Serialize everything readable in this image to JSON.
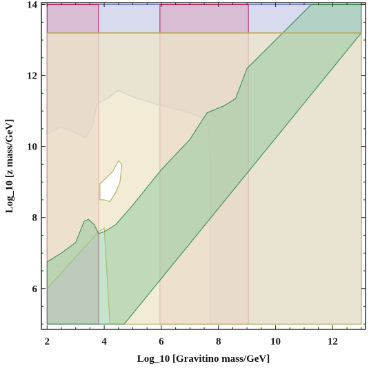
{
  "chart_data": {
    "type": "area",
    "title": "",
    "xlabel": "Log_10 [Gravitino mass/GeV]",
    "ylabel": "Log_10 [z mass/GeV]",
    "xlim": [
      1.8,
      13.15
    ],
    "ylim": [
      4.85,
      14.05
    ],
    "x_ticks": [
      2,
      4,
      6,
      8,
      10,
      12
    ],
    "y_ticks": [
      6,
      8,
      10,
      12,
      14
    ],
    "grid": false,
    "regions": [
      {
        "id": "blue-right",
        "fill": "#b8bce0",
        "stroke": "#7d86c4",
        "opacity": 0.55,
        "points": [
          [
            7.7,
            5.0
          ],
          [
            13.0,
            5.0
          ],
          [
            13.0,
            14.0
          ],
          [
            2.0,
            14.0
          ],
          [
            2.0,
            10.35
          ],
          [
            2.5,
            10.55
          ],
          [
            3.0,
            10.38
          ],
          [
            3.35,
            10.25
          ],
          [
            3.6,
            10.6
          ],
          [
            3.75,
            11.2
          ],
          [
            4.1,
            11.35
          ],
          [
            4.5,
            11.58
          ],
          [
            5.0,
            11.4
          ],
          [
            6.0,
            11.15
          ],
          [
            7.0,
            10.95
          ],
          [
            7.6,
            10.75
          ],
          [
            7.68,
            10.2
          ],
          [
            7.7,
            9.0
          ]
        ]
      },
      {
        "id": "pink-left-band",
        "fill": "#d9a0b9",
        "stroke": "#b0306e",
        "opacity": 0.5,
        "points": [
          [
            2.0,
            5.0
          ],
          [
            3.8,
            5.0
          ],
          [
            3.8,
            14.0
          ],
          [
            2.0,
            14.0
          ]
        ]
      },
      {
        "id": "pink-middle-band",
        "fill": "#d9a0b9",
        "stroke": "#b0306e",
        "opacity": 0.5,
        "points": [
          [
            5.95,
            5.0
          ],
          [
            9.05,
            5.0
          ],
          [
            9.05,
            14.0
          ],
          [
            5.95,
            14.0
          ]
        ]
      },
      {
        "id": "beige-region",
        "fill": "#eee6c8",
        "stroke": "#b8a95a",
        "opacity": 0.75,
        "points": [
          [
            2.0,
            6.0
          ],
          [
            2.0,
            13.2
          ],
          [
            13.0,
            13.2
          ],
          [
            13.0,
            5.0
          ],
          [
            4.2,
            5.0
          ],
          [
            4.0,
            7.7
          ],
          [
            3.8,
            7.6
          ]
        ]
      },
      {
        "id": "green-diagonal",
        "fill": "#8ec79a",
        "stroke": "#3a8f55",
        "opacity": 0.5,
        "points": [
          [
            2.0,
            5.0
          ],
          [
            4.7,
            5.0
          ],
          [
            13.0,
            13.2
          ],
          [
            13.0,
            14.0
          ],
          [
            11.25,
            14.0
          ],
          [
            9.0,
            12.2
          ],
          [
            8.6,
            11.35
          ],
          [
            8.2,
            11.15
          ],
          [
            7.6,
            10.95
          ],
          [
            7.0,
            10.2
          ],
          [
            6.0,
            9.35
          ],
          [
            5.0,
            8.35
          ],
          [
            4.4,
            7.8
          ],
          [
            4.0,
            7.6
          ],
          [
            3.8,
            7.55
          ],
          [
            3.65,
            7.8
          ],
          [
            3.45,
            7.95
          ],
          [
            3.3,
            7.9
          ],
          [
            3.0,
            7.3
          ],
          [
            2.5,
            7.0
          ],
          [
            2.0,
            6.75
          ]
        ]
      },
      {
        "id": "white-hole",
        "fill": "#ffffff",
        "stroke": "#b8a95a",
        "opacity": 1,
        "points": [
          [
            3.85,
            8.95
          ],
          [
            4.05,
            9.1
          ],
          [
            4.3,
            9.3
          ],
          [
            4.5,
            9.6
          ],
          [
            4.62,
            9.5
          ],
          [
            4.55,
            9.0
          ],
          [
            4.4,
            8.7
          ],
          [
            4.2,
            8.45
          ],
          [
            4.0,
            8.5
          ],
          [
            3.85,
            8.5
          ]
        ]
      }
    ],
    "lines": [
      {
        "id": "horizontal-13-2",
        "color": "#b8a95a",
        "points": [
          [
            2.0,
            13.2
          ],
          [
            13.0,
            13.2
          ]
        ]
      }
    ]
  }
}
